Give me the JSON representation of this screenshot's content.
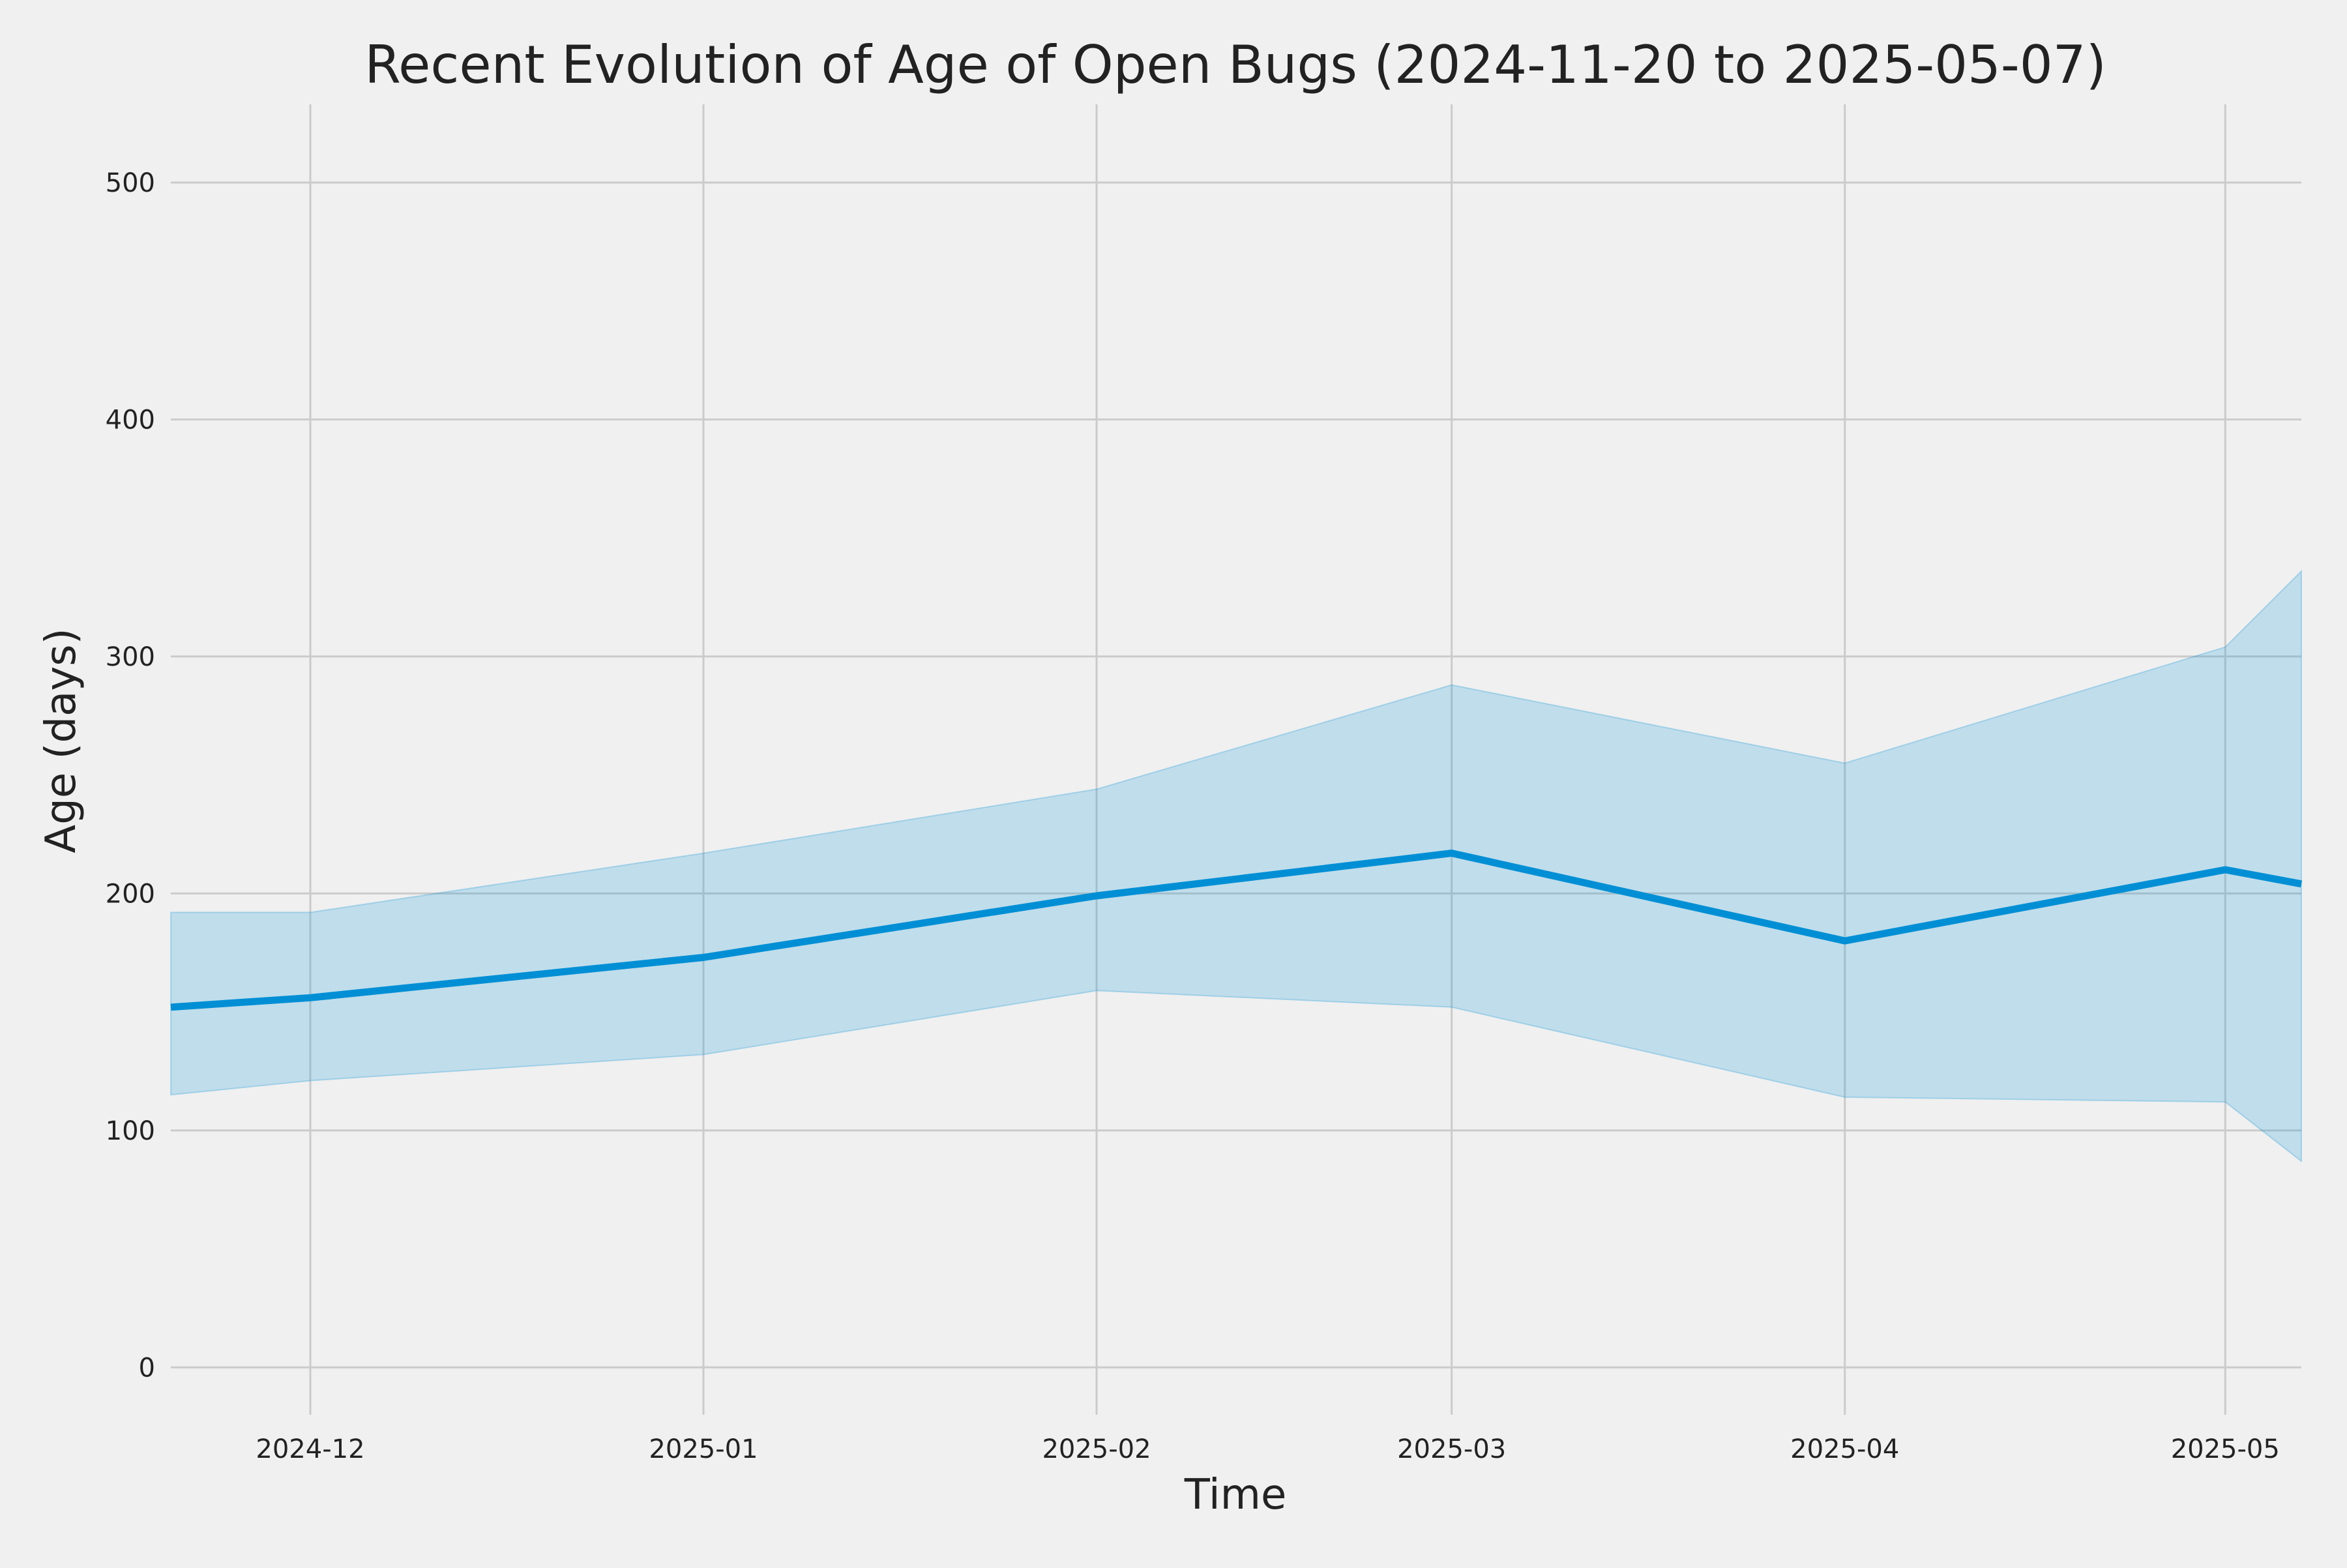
{
  "chart_data": {
    "type": "area",
    "title": "Recent Evolution of Age of Open Bugs (2024-11-20 to 2025-05-07)",
    "xlabel": "Time",
    "ylabel": "Age (days)",
    "xlim": [
      "2024-11-20",
      "2025-05-07"
    ],
    "ylim": [
      -20,
      533
    ],
    "grid": true,
    "x_ticks": [
      "2024-12",
      "2025-01",
      "2025-02",
      "2025-03",
      "2025-04",
      "2025-05"
    ],
    "x_tick_dates": [
      "2024-12-01",
      "2025-01-01",
      "2025-02-01",
      "2025-03-01",
      "2025-04-01",
      "2025-05-01"
    ],
    "y_ticks": [
      0,
      100,
      200,
      300,
      400,
      500
    ],
    "x": [
      "2024-11-20",
      "2024-12-01",
      "2025-01-01",
      "2025-02-01",
      "2025-03-01",
      "2025-04-01",
      "2025-05-01",
      "2025-05-07"
    ],
    "series": [
      {
        "values": [
          152,
          156,
          173,
          199,
          217,
          180,
          210,
          204
        ]
      }
    ],
    "band": {
      "upper": [
        192,
        192,
        217,
        244,
        288,
        255,
        304,
        336
      ],
      "lower": [
        115,
        121,
        132,
        159,
        152,
        114,
        112,
        87
      ]
    },
    "colors": {
      "line": "#008fd5",
      "band": "#008fd5",
      "grid": "#cbcbcb",
      "background": "#f0f0f0"
    }
  }
}
